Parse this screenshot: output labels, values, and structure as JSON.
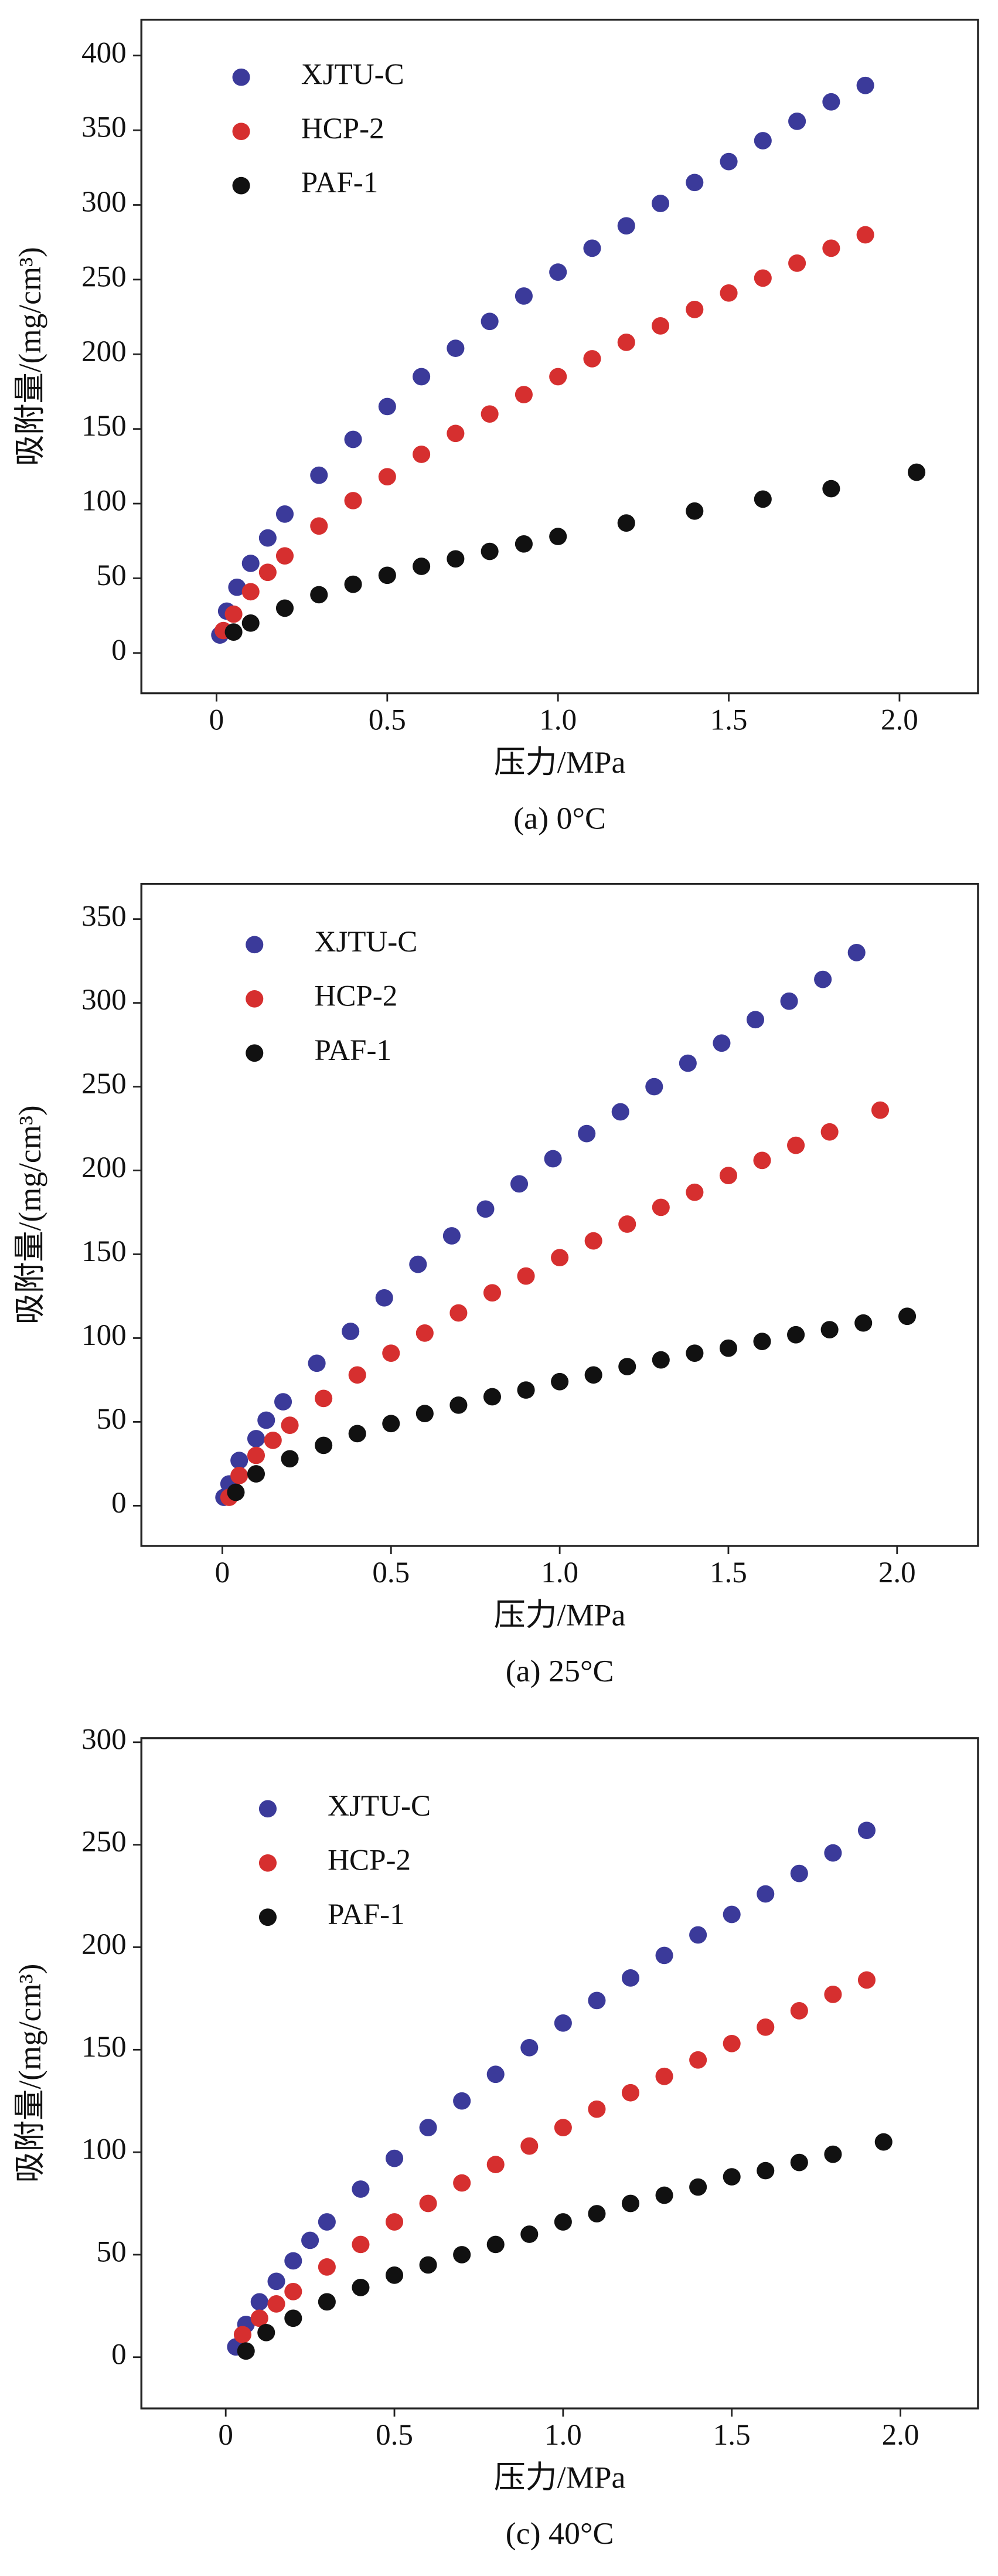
{
  "chart_data": [
    {
      "type": "scatter",
      "xlabel": "压力/MPa",
      "ylabel": "吸附量/(mg/cm³)",
      "caption": "(a) 0°C",
      "legend": "upper left",
      "xlim": [
        -0.22,
        2.23
      ],
      "ylim": [
        -27,
        424
      ],
      "xticks": [
        0,
        0.5,
        {
          "value": 1,
          "label": "1.0"
        },
        1.5,
        {
          "value": 2,
          "label": "2.0"
        }
      ],
      "yticks": [
        0,
        50,
        100,
        150,
        200,
        250,
        300,
        350,
        400
      ],
      "series": [
        {
          "name": "XJTU-C",
          "color": "#3b3a9a",
          "x": [
            0.01,
            0.03,
            0.06,
            0.1,
            0.15,
            0.2,
            0.3,
            0.4,
            0.5,
            0.6,
            0.7,
            0.8,
            0.9,
            1.0,
            1.1,
            1.2,
            1.3,
            1.4,
            1.5,
            1.6,
            1.7,
            1.8,
            1.9
          ],
          "values": [
            12,
            28,
            44,
            60,
            77,
            93,
            119,
            143,
            165,
            185,
            204,
            222,
            239,
            255,
            271,
            286,
            301,
            315,
            329,
            343,
            356,
            369,
            380
          ]
        },
        {
          "name": "HCP-2",
          "color": "#d62f2f",
          "x": [
            0.02,
            0.05,
            0.1,
            0.15,
            0.2,
            0.3,
            0.4,
            0.5,
            0.6,
            0.7,
            0.8,
            0.9,
            1.0,
            1.1,
            1.2,
            1.3,
            1.4,
            1.5,
            1.6,
            1.7,
            1.8,
            1.9
          ],
          "values": [
            15,
            26,
            41,
            54,
            65,
            85,
            102,
            118,
            133,
            147,
            160,
            173,
            185,
            197,
            208,
            219,
            230,
            241,
            251,
            261,
            271,
            280
          ]
        },
        {
          "name": "PAF-1",
          "color": "#111111",
          "x": [
            0.05,
            0.1,
            0.2,
            0.3,
            0.4,
            0.5,
            0.6,
            0.7,
            0.8,
            0.9,
            1.0,
            1.2,
            1.4,
            1.6,
            1.8,
            2.05
          ],
          "values": [
            14,
            20,
            30,
            39,
            46,
            52,
            58,
            63,
            68,
            73,
            78,
            87,
            95,
            103,
            110,
            121
          ]
        }
      ]
    },
    {
      "type": "scatter",
      "xlabel": "压力/MPa",
      "ylabel": "吸附量/(mg/cm³)",
      "caption": "(a) 25°C",
      "legend": "upper left",
      "xlim": [
        -0.24,
        2.24
      ],
      "ylim": [
        -24,
        371
      ],
      "xticks": [
        0,
        0.5,
        {
          "value": 1,
          "label": "1.0"
        },
        1.5,
        {
          "value": 2,
          "label": "2.0"
        }
      ],
      "yticks": [
        0,
        50,
        100,
        150,
        200,
        250,
        300,
        350
      ],
      "series": [
        {
          "name": "XJTU-C",
          "color": "#3b3a9a",
          "x": [
            0.005,
            0.02,
            0.05,
            0.1,
            0.13,
            0.18,
            0.28,
            0.38,
            0.48,
            0.58,
            0.68,
            0.78,
            0.88,
            0.98,
            1.08,
            1.18,
            1.28,
            1.38,
            1.48,
            1.58,
            1.68,
            1.78,
            1.88
          ],
          "values": [
            5,
            13,
            27,
            40,
            51,
            62,
            85,
            104,
            124,
            144,
            161,
            177,
            192,
            207,
            222,
            235,
            250,
            264,
            276,
            290,
            301,
            314,
            330
          ]
        },
        {
          "name": "HCP-2",
          "color": "#d62f2f",
          "x": [
            0.02,
            0.05,
            0.1,
            0.15,
            0.2,
            0.3,
            0.4,
            0.5,
            0.6,
            0.7,
            0.8,
            0.9,
            1.0,
            1.1,
            1.2,
            1.3,
            1.4,
            1.5,
            1.6,
            1.7,
            1.8,
            1.95
          ],
          "values": [
            5,
            18,
            30,
            39,
            48,
            64,
            78,
            91,
            103,
            115,
            127,
            137,
            148,
            158,
            168,
            178,
            187,
            197,
            206,
            215,
            223,
            236
          ]
        },
        {
          "name": "PAF-1",
          "color": "#111111",
          "x": [
            0.04,
            0.1,
            0.2,
            0.3,
            0.4,
            0.5,
            0.6,
            0.7,
            0.8,
            0.9,
            1.0,
            1.1,
            1.2,
            1.3,
            1.4,
            1.5,
            1.6,
            1.7,
            1.8,
            1.9,
            2.03
          ],
          "values": [
            8,
            19,
            28,
            36,
            43,
            49,
            55,
            60,
            65,
            69,
            74,
            78,
            83,
            87,
            91,
            94,
            98,
            102,
            105,
            109,
            113
          ]
        }
      ]
    },
    {
      "type": "scatter",
      "xlabel": "压力/MPa",
      "ylabel": "吸附量/(mg/cm³)",
      "caption": "(c) 40°C",
      "legend": "upper left",
      "xlim": [
        -0.25,
        2.23
      ],
      "ylim": [
        -25,
        302
      ],
      "xticks": [
        0,
        0.5,
        {
          "value": 1,
          "label": "1.0"
        },
        1.5,
        {
          "value": 2,
          "label": "2.0"
        }
      ],
      "yticks": [
        0,
        50,
        100,
        150,
        200,
        250,
        300
      ],
      "series": [
        {
          "name": "XJTU-C",
          "color": "#3b3a9a",
          "x": [
            0.03,
            0.06,
            0.1,
            0.15,
            0.2,
            0.25,
            0.3,
            0.4,
            0.5,
            0.6,
            0.7,
            0.8,
            0.9,
            1.0,
            1.1,
            1.2,
            1.3,
            1.4,
            1.5,
            1.6,
            1.7,
            1.8,
            1.9
          ],
          "values": [
            5,
            16,
            27,
            37,
            47,
            57,
            66,
            82,
            97,
            112,
            125,
            138,
            151,
            163,
            174,
            185,
            196,
            206,
            216,
            226,
            236,
            246,
            257
          ]
        },
        {
          "name": "HCP-2",
          "color": "#d62f2f",
          "x": [
            0.05,
            0.1,
            0.15,
            0.2,
            0.3,
            0.4,
            0.5,
            0.6,
            0.7,
            0.8,
            0.9,
            1.0,
            1.1,
            1.2,
            1.3,
            1.4,
            1.5,
            1.6,
            1.7,
            1.8,
            1.9
          ],
          "values": [
            11,
            19,
            26,
            32,
            44,
            55,
            66,
            75,
            85,
            94,
            103,
            112,
            121,
            129,
            137,
            145,
            153,
            161,
            169,
            177,
            184
          ]
        },
        {
          "name": "PAF-1",
          "color": "#111111",
          "x": [
            0.06,
            0.12,
            0.2,
            0.3,
            0.4,
            0.5,
            0.6,
            0.7,
            0.8,
            0.9,
            1.0,
            1.1,
            1.2,
            1.3,
            1.4,
            1.5,
            1.6,
            1.7,
            1.8,
            1.95
          ],
          "values": [
            3,
            12,
            19,
            27,
            34,
            40,
            45,
            50,
            55,
            60,
            66,
            70,
            75,
            79,
            83,
            88,
            91,
            95,
            99,
            105
          ]
        }
      ]
    }
  ]
}
